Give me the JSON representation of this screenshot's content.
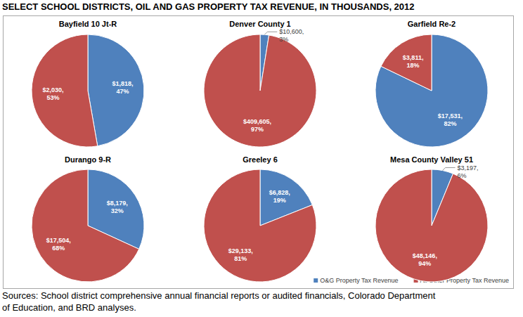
{
  "title": "SELECT SCHOOL DISTRICTS, OIL AND GAS PROPERTY TAX REVENUE, IN THOUSANDS, 2012",
  "source": [
    "Sources: School district comprehensive annual financial reports or audited financials, Colorado Department",
    "of Education, and BRD analyses."
  ],
  "chart_data": [
    {
      "type": "pie",
      "title": "Bayfield 10 Jt-R",
      "categories": [
        "O&G Property Tax Revenue",
        "All Other Property Tax Revenue"
      ],
      "values": [
        1818,
        2030
      ],
      "value_labels": [
        "$1,818, 47%",
        "$2,030, 53%"
      ],
      "colors": [
        "#4f81bd",
        "#c0504d"
      ],
      "data_labels": true,
      "legend": "bottom-right"
    },
    {
      "type": "pie",
      "title": "Denver County 1",
      "categories": [
        "O&G Property Tax Revenue",
        "All Other Property Tax Revenue"
      ],
      "values": [
        10600,
        409605
      ],
      "value_labels": [
        "$10,600, 3%",
        "$409,605, 97%"
      ],
      "colors": [
        "#4f81bd",
        "#c0504d"
      ],
      "data_labels": true
    },
    {
      "type": "pie",
      "title": "Garfield Re-2",
      "categories": [
        "O&G Property Tax Revenue",
        "All Other Property Tax Revenue"
      ],
      "values": [
        17531,
        3811
      ],
      "value_labels": [
        "$17,531, 82%",
        "$3,811, 18%"
      ],
      "colors": [
        "#4f81bd",
        "#c0504d"
      ],
      "data_labels": true
    },
    {
      "type": "pie",
      "title": "Durango 9-R",
      "categories": [
        "O&G Property Tax Revenue",
        "All Other Property Tax Revenue"
      ],
      "values": [
        8179,
        17504
      ],
      "value_labels": [
        "$8,179, 32%",
        "$17,504, 68%"
      ],
      "colors": [
        "#4f81bd",
        "#c0504d"
      ],
      "data_labels": true
    },
    {
      "type": "pie",
      "title": "Greeley 6",
      "categories": [
        "O&G Property Tax Revenue",
        "All Other Property Tax Revenue"
      ],
      "values": [
        6828,
        29133
      ],
      "value_labels": [
        "$6,828, 19%",
        "$29,133, 81%"
      ],
      "colors": [
        "#4f81bd",
        "#c0504d"
      ],
      "data_labels": true
    },
    {
      "type": "pie",
      "title": "Mesa County Valley 51",
      "categories": [
        "O&G Property Tax Revenue",
        "All Other Property Tax Revenue"
      ],
      "values": [
        3197,
        48146
      ],
      "value_labels": [
        "$3,197, 6%",
        "$48,146, 94%"
      ],
      "colors": [
        "#4f81bd",
        "#c0504d"
      ],
      "data_labels": true
    }
  ]
}
